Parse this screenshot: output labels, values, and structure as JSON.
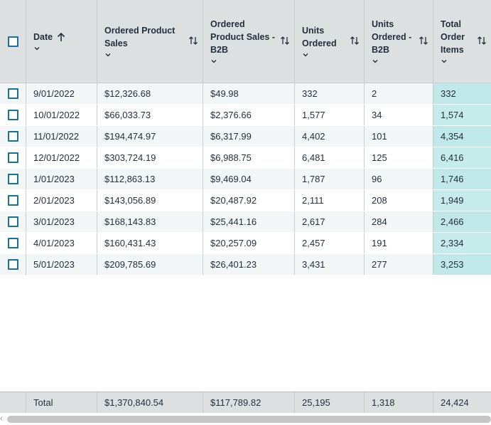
{
  "table": {
    "columns": [
      {
        "key": "date",
        "label_lines": [
          "Date"
        ],
        "sorted": "ascending",
        "has_chevron": true,
        "has_sort_toggle": false
      },
      {
        "key": "ordered_product_sales",
        "label_lines": [
          "Ordered Product",
          "Sales"
        ],
        "has_chevron": true,
        "has_sort_toggle": true
      },
      {
        "key": "ordered_product_sales_b2b",
        "label_lines": [
          "Ordered",
          "Product Sales -",
          "B2B"
        ],
        "has_chevron": true,
        "has_sort_toggle": true
      },
      {
        "key": "units_ordered",
        "label_lines": [
          "Units",
          "Ordered"
        ],
        "has_chevron": true,
        "has_sort_toggle": true
      },
      {
        "key": "units_ordered_b2b",
        "label_lines": [
          "Units",
          "Ordered -",
          "B2B"
        ],
        "has_chevron": true,
        "has_sort_toggle": true
      },
      {
        "key": "total_order_items",
        "label_lines": [
          "Total",
          "Order",
          "Items"
        ],
        "has_chevron": true,
        "has_sort_toggle": true
      }
    ],
    "rows": [
      [
        "9/01/2022",
        "$12,326.68",
        "$49.98",
        "332",
        "2",
        "332"
      ],
      [
        "10/01/2022",
        "$66,033.73",
        "$2,376.66",
        "1,577",
        "34",
        "1,574"
      ],
      [
        "11/01/2022",
        "$194,474.97",
        "$6,317.99",
        "4,402",
        "101",
        "4,354"
      ],
      [
        "12/01/2022",
        "$303,724.19",
        "$6,988.75",
        "6,481",
        "125",
        "6,416"
      ],
      [
        "1/01/2023",
        "$112,863.13",
        "$9,469.04",
        "1,787",
        "96",
        "1,746"
      ],
      [
        "2/01/2023",
        "$143,056.89",
        "$20,487.92",
        "2,111",
        "208",
        "1,949"
      ],
      [
        "3/01/2023",
        "$168,143.83",
        "$25,441.16",
        "2,617",
        "284",
        "2,466"
      ],
      [
        "4/01/2023",
        "$160,431.43",
        "$20,257.09",
        "2,457",
        "191",
        "2,334"
      ],
      [
        "5/01/2023",
        "$209,785.69",
        "$26,401.23",
        "3,431",
        "277",
        "3,253"
      ]
    ],
    "totals": [
      "Total",
      "$1,370,840.54",
      "$117,789.82",
      "25,195",
      "1,318",
      "24,424"
    ]
  },
  "colors": {
    "header_bg": "#dce0e1",
    "checkbox_border": "#1b6f9c",
    "highlight_column": "#c6ebeb",
    "row_alt": "#f3f6f7"
  },
  "icons": {
    "sort_ascending": "arrow-up-icon",
    "column_menu": "chevron-down-icon",
    "sort_toggle": "sort-toggle-icon",
    "scroll_left": "arrow-left-icon"
  },
  "scrollbar": {
    "left_glyph": "‹"
  }
}
